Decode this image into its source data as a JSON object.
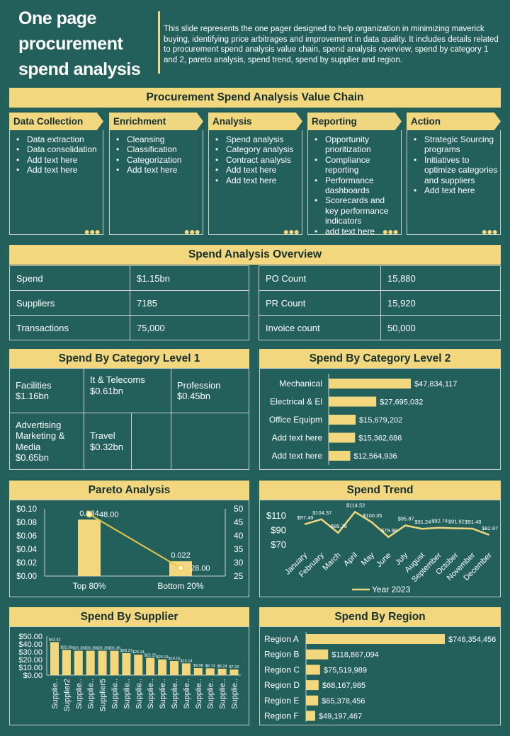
{
  "page": {
    "title": "One page procurement spend analysis",
    "description": "This slide represents the one pager designed to help organization in minimizing maverick buying, identifying price arbitrages and improvement in data quality. It includes details related to procurement spend analysis value chain, spend analysis overview, spend by category 1 and 2, pareto analysis, spend trend, spend by supplier and region."
  },
  "value_chain": {
    "title": "Procurement Spend Analysis Value Chain",
    "stages": [
      {
        "label": "Data Collection",
        "items": [
          "Data extraction",
          "Data consolidation",
          "Add text here",
          "Add text here"
        ]
      },
      {
        "label": "Enrichment",
        "items": [
          "Cleansing",
          "Classification",
          "Categorization",
          "Add text here"
        ]
      },
      {
        "label": "Analysis",
        "items": [
          "Spend analysis",
          "Category analysis",
          "Contract analysis",
          "Add text here",
          "Add text here"
        ]
      },
      {
        "label": "Reporting",
        "items": [
          "Opportunity prioritization",
          "Compliance reporting",
          "Performance dashboards",
          "Scorecards and key performance indicators",
          "add text here"
        ]
      },
      {
        "label": "Action",
        "items": [
          "Strategic Sourcing programs",
          "Initiatives to optimize categories and suppliers",
          "Add text here"
        ]
      }
    ]
  },
  "overview": {
    "title": "Spend Analysis Overview",
    "left": [
      {
        "label": "Spend",
        "value": "$1.15bn"
      },
      {
        "label": "Suppliers",
        "value": "7185"
      },
      {
        "label": "Transactions",
        "value": "75,000"
      }
    ],
    "right": [
      {
        "label": "PO Count",
        "value": "15,880"
      },
      {
        "label": "PR Count",
        "value": "15,920"
      },
      {
        "label": "Invoice  count",
        "value": "50,000"
      }
    ]
  },
  "category1": {
    "title": "Spend By Category Level 1",
    "cells": [
      {
        "name": "Facilities",
        "value": "$1.16bn"
      },
      {
        "name": "It & Telecoms",
        "value": "$0.61bn"
      },
      {
        "name": "Profession",
        "value": "$0.45bn"
      },
      {
        "name": "Advertising Marketing & Media",
        "value": "$0.65bn"
      },
      {
        "name": "Travel",
        "value": "$0.32bn"
      }
    ]
  },
  "chart_titles": {
    "category2": "Spend By Category Level 2",
    "pareto": "Pareto Analysis",
    "trend": "Spend Trend",
    "supplier": "Spend By Supplier",
    "region": "Spend By Region"
  },
  "colors": {
    "background": "#23605c",
    "accent": "#f2d77e",
    "border": "#c9d3c9",
    "dark_text": "#16302e"
  },
  "chart_data": [
    {
      "id": "category2",
      "type": "bar",
      "orientation": "horizontal",
      "categories": [
        "Mechanical",
        "Electrical & El",
        "Office Equipm",
        "Add text here",
        "Add text here"
      ],
      "values": [
        47834117,
        27695032,
        15679202,
        15362686,
        12564936
      ],
      "labels": [
        "$47,834,117",
        "$27,695,032",
        "$15,679,202",
        "$15,362,686",
        "$12,564,936"
      ]
    },
    {
      "id": "pareto",
      "type": "bar",
      "categories": [
        "Top 80%",
        "Bottom 20%"
      ],
      "values": [
        0.084,
        0.022
      ],
      "value_labels": [
        "0.084",
        "0.022"
      ],
      "line_values": [
        48,
        28
      ],
      "line_labels": [
        "48.00",
        "28.00"
      ],
      "y_ticks": [
        "$0.00",
        "$0.02",
        "$0.04",
        "$0.06",
        "$0.08",
        "$0.10"
      ],
      "ylim": [
        0,
        0.1
      ],
      "y2_ticks": [
        "25",
        "30",
        "35",
        "40",
        "45",
        "50"
      ],
      "y2lim": [
        25,
        50
      ]
    },
    {
      "id": "trend",
      "type": "line",
      "categories": [
        "January",
        "February",
        "March",
        "April",
        "May",
        "June",
        "July",
        "August",
        "September",
        "October",
        "November",
        "December"
      ],
      "values": [
        97.49,
        104.37,
        85.76,
        114.52,
        100.35,
        79.96,
        95.87,
        91.24,
        92.74,
        91.92,
        91.48,
        82.87
      ],
      "labels": [
        "$97.49",
        "$104.37",
        "$85.76",
        "$114.52",
        "$100.35",
        "$79.96",
        "$95.87",
        "$91.24",
        "$92.74",
        "$91.92",
        "$91.48",
        "$82.87"
      ],
      "series_name": "Year 2023",
      "y_ticks": [
        "$70",
        "$90",
        "$110"
      ],
      "ylim": [
        70,
        120
      ]
    },
    {
      "id": "supplier",
      "type": "bar",
      "categories": [
        "Supplie..",
        "Supplier2",
        "Supplie..",
        "Supplie..",
        "Supplier5",
        "Supplie..",
        "Supplie..",
        "Supplie..",
        "Supplie..",
        "Supplie..",
        "Supplie..",
        "Supplie..",
        "Supplie..",
        "Supplie..",
        "Supplie..",
        "Supplie.."
      ],
      "values": [
        42.42,
        32.39,
        31.26,
        31.26,
        31.26,
        31.26,
        28.27,
        26.24,
        22.22,
        20.19,
        18.16,
        15.14,
        9.08,
        8.74,
        8.24,
        7.22
      ],
      "labels": [
        "$42.42",
        "$32.39",
        "$31.26",
        "$31.26",
        "$31.26",
        "$31.26",
        "$28.27",
        "$26.24",
        "$22.22",
        "$20.19",
        "$18.16",
        "$15.14",
        "$9.08",
        "$8.74",
        "$8.24",
        "$7.22"
      ],
      "y_ticks": [
        "$0.00",
        "$10.00",
        "$20.00",
        "$30.00",
        "$40.00",
        "$50.00"
      ],
      "ylim": [
        0,
        50
      ]
    },
    {
      "id": "region",
      "type": "bar",
      "orientation": "horizontal",
      "categories": [
        "Region A",
        "Region B",
        "Region C",
        "Region D",
        "Region E",
        "Region F"
      ],
      "values": [
        746354456,
        118867094,
        75519989,
        68167985,
        65378456,
        49197467
      ],
      "labels": [
        "$746,354,456",
        "$118,867,094",
        "$75,519,989",
        "$68,167,985",
        "$65,378,456",
        "$49,197,467"
      ]
    }
  ]
}
